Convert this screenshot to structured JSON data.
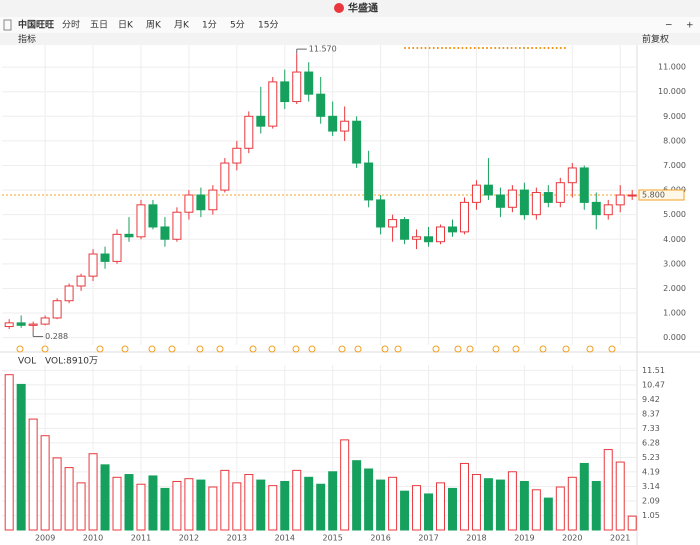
{
  "toolbar": {
    "logo": "华盛通",
    "stock": "中国旺旺",
    "tabs": [
      "分时",
      "五日",
      "日K",
      "周K",
      "月K",
      "1分",
      "5分",
      "15分"
    ],
    "indicator": "指标",
    "adjust": "前复权"
  },
  "chart_data": {
    "type": "candlestick",
    "x": [
      2008.25,
      2008.5,
      2008.75,
      2009.0,
      2009.25,
      2009.5,
      2009.75,
      2010.0,
      2010.25,
      2010.5,
      2010.75,
      2011.0,
      2011.25,
      2011.5,
      2011.75,
      2012.0,
      2012.25,
      2012.5,
      2012.75,
      2013.0,
      2013.25,
      2013.5,
      2013.75,
      2014.0,
      2014.25,
      2014.5,
      2014.75,
      2015.0,
      2015.25,
      2015.5,
      2015.75,
      2016.0,
      2016.25,
      2016.5,
      2016.75,
      2017.0,
      2017.25,
      2017.5,
      2017.75,
      2018.0,
      2018.25,
      2018.5,
      2018.75,
      2019.0,
      2019.25,
      2019.5,
      2019.75,
      2020.0,
      2020.25,
      2020.5,
      2020.75,
      2021.0,
      2021.25
    ],
    "open": [
      0.45,
      0.6,
      0.5,
      0.55,
      0.8,
      1.5,
      2.1,
      2.5,
      3.4,
      3.1,
      4.2,
      4.1,
      5.4,
      4.5,
      4.0,
      5.1,
      5.8,
      5.2,
      6.0,
      7.1,
      7.7,
      9.0,
      8.6,
      10.4,
      9.6,
      10.8,
      9.9,
      9.0,
      8.4,
      8.8,
      7.1,
      5.6,
      4.5,
      4.8,
      4.0,
      4.1,
      3.9,
      4.5,
      4.3,
      5.5,
      6.2,
      5.8,
      5.3,
      6.0,
      5.0,
      5.9,
      5.5,
      6.3,
      6.9,
      5.5,
      5.0,
      5.4,
      5.8
    ],
    "high": [
      0.75,
      0.9,
      0.65,
      0.9,
      1.6,
      2.2,
      2.6,
      3.6,
      3.7,
      4.4,
      4.9,
      5.6,
      5.6,
      4.9,
      5.3,
      6.0,
      6.1,
      6.2,
      7.3,
      8.0,
      9.2,
      10.2,
      10.6,
      10.9,
      11.57,
      11.2,
      10.6,
      9.6,
      9.4,
      9.0,
      7.6,
      5.8,
      5.0,
      4.9,
      4.4,
      4.5,
      4.6,
      4.8,
      5.7,
      6.4,
      7.3,
      6.1,
      6.2,
      6.3,
      6.1,
      6.2,
      6.5,
      7.1,
      7.0,
      5.9,
      5.6,
      6.2,
      6.0
    ],
    "low": [
      0.35,
      0.4,
      0.288,
      0.5,
      0.75,
      1.4,
      1.9,
      2.3,
      2.8,
      3.0,
      3.9,
      4.0,
      4.4,
      3.7,
      3.9,
      4.8,
      4.9,
      5.0,
      5.9,
      6.8,
      7.5,
      8.3,
      8.5,
      9.3,
      9.5,
      9.6,
      8.7,
      8.2,
      8.0,
      6.9,
      5.3,
      4.2,
      3.9,
      3.8,
      3.6,
      3.7,
      3.8,
      4.1,
      4.2,
      5.2,
      5.6,
      4.9,
      5.1,
      4.8,
      4.8,
      5.3,
      5.3,
      5.7,
      5.2,
      4.4,
      4.8,
      5.1,
      5.6
    ],
    "close": [
      0.6,
      0.5,
      0.55,
      0.8,
      1.5,
      2.1,
      2.5,
      3.4,
      3.1,
      4.2,
      4.1,
      5.4,
      4.5,
      4.0,
      5.1,
      5.8,
      5.2,
      6.0,
      7.1,
      7.7,
      9.0,
      8.6,
      10.4,
      9.6,
      10.8,
      9.9,
      9.0,
      8.4,
      8.8,
      7.1,
      5.6,
      4.5,
      4.8,
      4.0,
      4.1,
      3.9,
      4.5,
      4.3,
      5.5,
      6.2,
      5.8,
      5.3,
      6.0,
      5.0,
      5.9,
      5.5,
      6.3,
      6.9,
      5.5,
      5.0,
      5.4,
      5.8,
      5.8
    ],
    "up_color": "#e8383d",
    "down_color": "#16a05d",
    "xlim": [
      2008.1,
      2021.35
    ],
    "xticks": [
      2009,
      2010,
      2011,
      2012,
      2013,
      2014,
      2015,
      2016,
      2017,
      2018,
      2019,
      2020,
      2021
    ],
    "ylim": [
      -0.3,
      11.9
    ],
    "yticks": [
      {
        "value": 0,
        "label": "0.000"
      },
      {
        "value": 1,
        "label": "1.000"
      },
      {
        "value": 2,
        "label": "2.000"
      },
      {
        "value": 3,
        "label": "3.000"
      },
      {
        "value": 4,
        "label": "4.000"
      },
      {
        "value": 5,
        "label": "5.000"
      },
      {
        "value": 6,
        "label": "6.000"
      },
      {
        "value": 7,
        "label": "7.000"
      },
      {
        "value": 8,
        "label": "8.000"
      },
      {
        "value": 9,
        "label": "9.000"
      },
      {
        "value": 10,
        "label": "10.000"
      },
      {
        "value": 11,
        "label": "11.000"
      }
    ],
    "annotations": [
      {
        "x": 2014.25,
        "value": 11.57,
        "label": "11.570"
      },
      {
        "x": 2008.75,
        "value": 0.288,
        "label": "0.288"
      }
    ],
    "last_price": {
      "value": 5.8,
      "label": "5.800"
    },
    "volume": {
      "label": "VOL",
      "subtitle": "VOL:8910万",
      "values": [
        11.2,
        10.5,
        8.0,
        6.8,
        5.2,
        4.5,
        3.4,
        5.5,
        4.7,
        3.8,
        4.0,
        3.3,
        3.9,
        3.0,
        3.5,
        3.7,
        3.6,
        3.1,
        4.3,
        3.4,
        4.0,
        3.6,
        3.2,
        3.5,
        4.3,
        3.8,
        3.3,
        4.2,
        6.5,
        5.0,
        4.4,
        3.6,
        3.8,
        2.8,
        3.2,
        2.6,
        3.4,
        3.0,
        4.8,
        4.0,
        3.7,
        3.6,
        4.2,
        3.5,
        2.9,
        2.3,
        3.1,
        3.8,
        4.8,
        3.5,
        5.8,
        4.9,
        1.0
      ],
      "ylim": [
        0,
        11.9
      ],
      "yticks": [
        1.05,
        2.09,
        3.14,
        4.19,
        5.23,
        6.28,
        7.33,
        8.37,
        9.42,
        10.47,
        11.51
      ]
    }
  }
}
